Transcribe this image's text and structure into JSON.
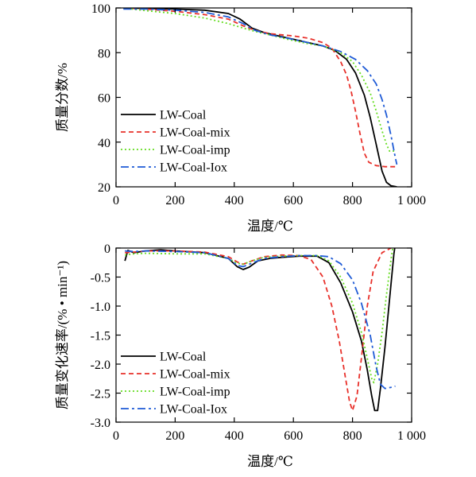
{
  "chart_data": [
    {
      "type": "line",
      "xlabel": "温度/℃",
      "ylabel": "质量分数/%",
      "xlim": [
        0,
        1000
      ],
      "ylim": [
        20,
        100
      ],
      "xticks": [
        0,
        200,
        400,
        600,
        800,
        1000
      ],
      "xtick_labels": [
        "0",
        "200",
        "400",
        "600",
        "800",
        "1 000"
      ],
      "yticks": [
        20,
        40,
        60,
        80,
        100
      ],
      "ytick_labels": [
        "20",
        "40",
        "60",
        "80",
        "100"
      ],
      "grid": false,
      "legend_position": "bottom-left",
      "series": [
        {
          "name": "LW-Coal",
          "color": "#000000",
          "dash": "solid",
          "points": [
            [
              25,
              100
            ],
            [
              100,
              99.8
            ],
            [
              200,
              99.5
            ],
            [
              300,
              99
            ],
            [
              380,
              97.5
            ],
            [
              420,
              95
            ],
            [
              460,
              91
            ],
            [
              500,
              89
            ],
            [
              550,
              87.5
            ],
            [
              600,
              86
            ],
            [
              650,
              84.5
            ],
            [
              700,
              83
            ],
            [
              740,
              81
            ],
            [
              780,
              77
            ],
            [
              810,
              71
            ],
            [
              840,
              61
            ],
            [
              860,
              51
            ],
            [
              880,
              39
            ],
            [
              900,
              27
            ],
            [
              915,
              22
            ],
            [
              930,
              20.5
            ],
            [
              950,
              20
            ]
          ]
        },
        {
          "name": "LW-Coal-mix",
          "color": "#e8302a",
          "dash": "6,4",
          "points": [
            [
              25,
              100
            ],
            [
              100,
              99.5
            ],
            [
              200,
              98.5
            ],
            [
              300,
              97
            ],
            [
              380,
              95
            ],
            [
              430,
              92
            ],
            [
              470,
              90
            ],
            [
              520,
              88.5
            ],
            [
              560,
              88
            ],
            [
              600,
              87.5
            ],
            [
              650,
              86.5
            ],
            [
              700,
              84.5
            ],
            [
              730,
              82
            ],
            [
              760,
              76
            ],
            [
              780,
              70
            ],
            [
              795,
              63
            ],
            [
              810,
              54
            ],
            [
              825,
              44
            ],
            [
              840,
              35
            ],
            [
              855,
              31
            ],
            [
              880,
              29.5
            ],
            [
              910,
              29
            ],
            [
              950,
              29
            ]
          ]
        },
        {
          "name": "LW-Coal-imp",
          "color": "#66dd22",
          "dash": "2,3",
          "points": [
            [
              25,
              100
            ],
            [
              100,
              98.8
            ],
            [
              200,
              97.5
            ],
            [
              300,
              95.5
            ],
            [
              380,
              93
            ],
            [
              430,
              91
            ],
            [
              470,
              89.5
            ],
            [
              520,
              88
            ],
            [
              580,
              86
            ],
            [
              650,
              84
            ],
            [
              700,
              83
            ],
            [
              760,
              80
            ],
            [
              800,
              76
            ],
            [
              830,
              70
            ],
            [
              860,
              62
            ],
            [
              880,
              54
            ],
            [
              900,
              45
            ],
            [
              915,
              39
            ],
            [
              925,
              36
            ],
            [
              945,
              36
            ]
          ]
        },
        {
          "name": "LW-Coal-Iox",
          "color": "#1f5bd6",
          "dash": "10,4,3,4",
          "points": [
            [
              25,
              99.5
            ],
            [
              100,
              99.5
            ],
            [
              200,
              99
            ],
            [
              300,
              98
            ],
            [
              380,
              96
            ],
            [
              430,
              93
            ],
            [
              470,
              90
            ],
            [
              520,
              88
            ],
            [
              580,
              86.5
            ],
            [
              650,
              84.5
            ],
            [
              700,
              83
            ],
            [
              760,
              80.5
            ],
            [
              810,
              77
            ],
            [
              850,
              72
            ],
            [
              880,
              66
            ],
            [
              900,
              59
            ],
            [
              915,
              52
            ],
            [
              930,
              43
            ],
            [
              945,
              33
            ],
            [
              950,
              30
            ]
          ]
        }
      ]
    },
    {
      "type": "line",
      "xlabel": "温度/℃",
      "ylabel": "质量变化速率/(% • min⁻¹)",
      "xlim": [
        0,
        1000
      ],
      "ylim": [
        -3.0,
        0
      ],
      "xticks": [
        0,
        200,
        400,
        600,
        800,
        1000
      ],
      "xtick_labels": [
        "0",
        "200",
        "400",
        "600",
        "800",
        "1 000"
      ],
      "yticks": [
        0,
        -0.5,
        -1.0,
        -1.5,
        -2.0,
        -2.5,
        -3.0
      ],
      "ytick_labels": [
        "0",
        "-0.5",
        "-1.0",
        "-1.5",
        "-2.0",
        "-2.5",
        "-3.0"
      ],
      "grid": false,
      "legend_position": "bottom-left",
      "series": [
        {
          "name": "LW-Coal",
          "color": "#000000",
          "dash": "solid",
          "points": [
            [
              30,
              -0.22
            ],
            [
              40,
              -0.04
            ],
            [
              60,
              -0.08
            ],
            [
              100,
              -0.05
            ],
            [
              150,
              -0.03
            ],
            [
              200,
              -0.05
            ],
            [
              300,
              -0.08
            ],
            [
              380,
              -0.18
            ],
            [
              410,
              -0.32
            ],
            [
              430,
              -0.37
            ],
            [
              450,
              -0.33
            ],
            [
              480,
              -0.22
            ],
            [
              520,
              -0.18
            ],
            [
              560,
              -0.16
            ],
            [
              620,
              -0.14
            ],
            [
              680,
              -0.14
            ],
            [
              720,
              -0.25
            ],
            [
              760,
              -0.6
            ],
            [
              800,
              -1.1
            ],
            [
              830,
              -1.6
            ],
            [
              850,
              -2.1
            ],
            [
              865,
              -2.55
            ],
            [
              875,
              -2.8
            ],
            [
              885,
              -2.8
            ],
            [
              895,
              -2.4
            ],
            [
              910,
              -1.7
            ],
            [
              925,
              -0.9
            ],
            [
              940,
              -0.1
            ],
            [
              950,
              0.25
            ]
          ]
        },
        {
          "name": "LW-Coal-mix",
          "color": "#e8302a",
          "dash": "6,4",
          "points": [
            [
              30,
              -0.08
            ],
            [
              60,
              -0.07
            ],
            [
              100,
              -0.05
            ],
            [
              200,
              -0.05
            ],
            [
              300,
              -0.07
            ],
            [
              380,
              -0.15
            ],
            [
              410,
              -0.24
            ],
            [
              430,
              -0.28
            ],
            [
              460,
              -0.22
            ],
            [
              500,
              -0.15
            ],
            [
              560,
              -0.12
            ],
            [
              620,
              -0.13
            ],
            [
              660,
              -0.2
            ],
            [
              700,
              -0.5
            ],
            [
              730,
              -1.0
            ],
            [
              755,
              -1.6
            ],
            [
              775,
              -2.2
            ],
            [
              790,
              -2.65
            ],
            [
              800,
              -2.8
            ],
            [
              815,
              -2.55
            ],
            [
              830,
              -1.9
            ],
            [
              850,
              -1.0
            ],
            [
              870,
              -0.4
            ],
            [
              900,
              -0.08
            ],
            [
              930,
              0
            ]
          ]
        },
        {
          "name": "LW-Coal-imp",
          "color": "#66dd22",
          "dash": "2,3",
          "points": [
            [
              30,
              -0.12
            ],
            [
              60,
              -0.1
            ],
            [
              100,
              -0.09
            ],
            [
              200,
              -0.1
            ],
            [
              300,
              -0.1
            ],
            [
              380,
              -0.18
            ],
            [
              410,
              -0.26
            ],
            [
              430,
              -0.28
            ],
            [
              460,
              -0.22
            ],
            [
              500,
              -0.16
            ],
            [
              560,
              -0.14
            ],
            [
              620,
              -0.13
            ],
            [
              680,
              -0.13
            ],
            [
              720,
              -0.22
            ],
            [
              760,
              -0.5
            ],
            [
              800,
              -0.95
            ],
            [
              830,
              -1.45
            ],
            [
              850,
              -1.9
            ],
            [
              865,
              -2.25
            ],
            [
              872,
              -2.32
            ],
            [
              885,
              -2.0
            ],
            [
              900,
              -1.45
            ],
            [
              915,
              -0.8
            ],
            [
              930,
              -0.2
            ],
            [
              945,
              0.3
            ]
          ]
        },
        {
          "name": "LW-Coal-Iox",
          "color": "#1f5bd6",
          "dash": "10,4,3,4",
          "points": [
            [
              30,
              -0.05
            ],
            [
              60,
              -0.06
            ],
            [
              100,
              -0.05
            ],
            [
              200,
              -0.06
            ],
            [
              300,
              -0.08
            ],
            [
              380,
              -0.18
            ],
            [
              410,
              -0.3
            ],
            [
              430,
              -0.32
            ],
            [
              460,
              -0.26
            ],
            [
              500,
              -0.18
            ],
            [
              560,
              -0.15
            ],
            [
              620,
              -0.13
            ],
            [
              680,
              -0.13
            ],
            [
              720,
              -0.15
            ],
            [
              760,
              -0.27
            ],
            [
              800,
              -0.55
            ],
            [
              830,
              -0.95
            ],
            [
              860,
              -1.5
            ],
            [
              880,
              -2.05
            ],
            [
              895,
              -2.35
            ],
            [
              910,
              -2.42
            ],
            [
              930,
              -2.4
            ],
            [
              945,
              -2.38
            ]
          ]
        }
      ]
    }
  ]
}
